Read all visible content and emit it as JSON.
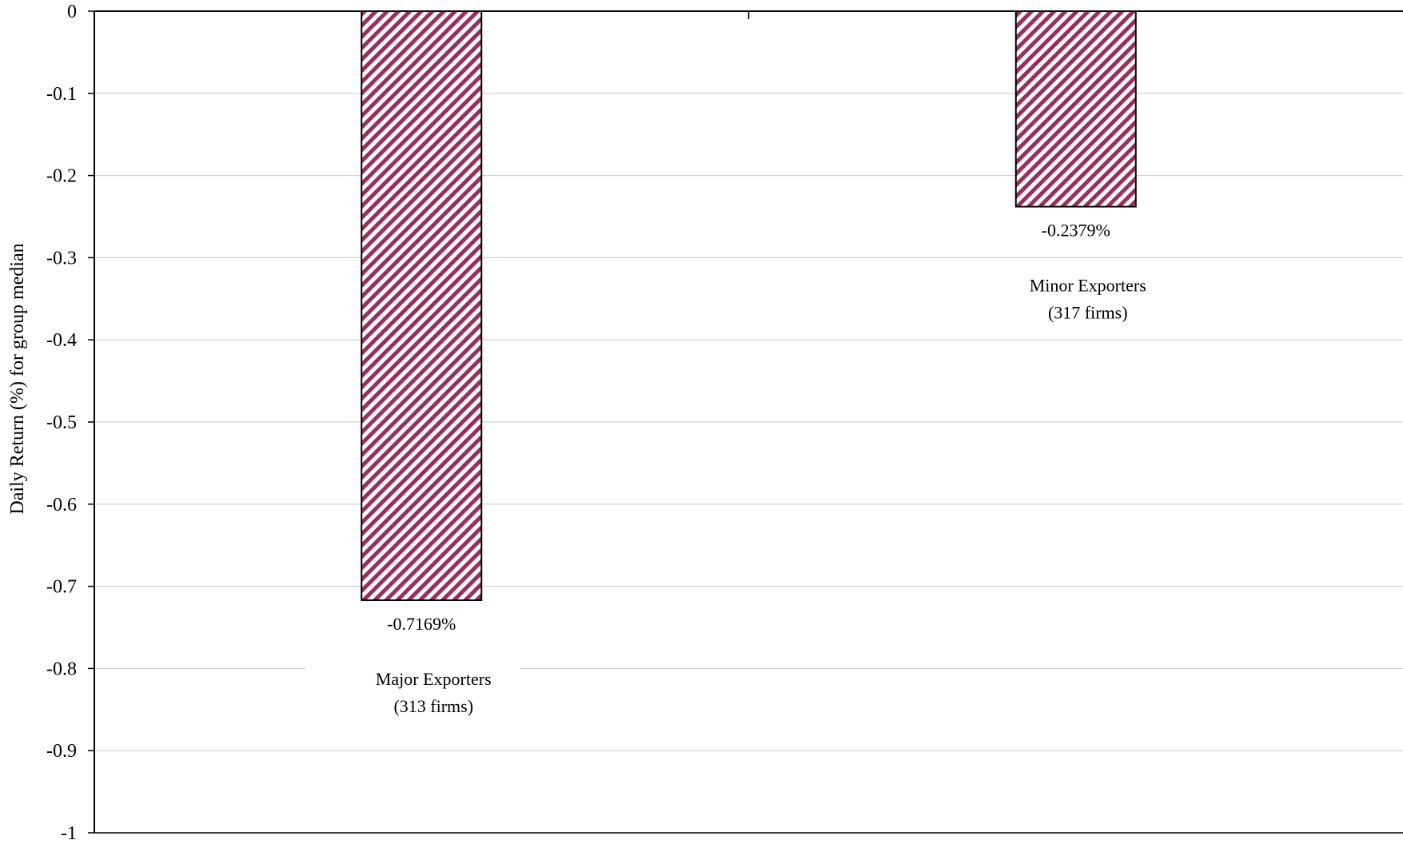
{
  "chart_data": {
    "type": "bar",
    "title": "",
    "xlabel": "",
    "ylabel": "Daily Return (%) for group median",
    "ylim": [
      -1,
      0
    ],
    "yticks": [
      0,
      -0.1,
      -0.2,
      -0.3,
      -0.4,
      -0.5,
      -0.6,
      -0.7,
      -0.8,
      -0.9,
      -1
    ],
    "ytick_labels": [
      "0",
      "-0.1",
      "-0.2",
      "-0.3",
      "-0.4",
      "-0.5",
      "-0.6",
      "-0.7",
      "-0.8",
      "-0.9",
      "-1"
    ],
    "grid": true,
    "legend": "none",
    "categories": [
      {
        "name": "Major Exporters",
        "note": "(313 firms)"
      },
      {
        "name": "Minor Exporters",
        "note": "(317 firms)"
      }
    ],
    "values": [
      -0.7169,
      -0.2379
    ],
    "data_labels": [
      "-0.7169%",
      "-0.2379%"
    ],
    "bar_fill": "hatched diagonal",
    "colors": {
      "bar_hatch": "#9b2d5f",
      "bar_background": "#ffffff",
      "bar_outline": "#000000",
      "gridline": "#c8c8c8",
      "axis": "#000000"
    }
  }
}
